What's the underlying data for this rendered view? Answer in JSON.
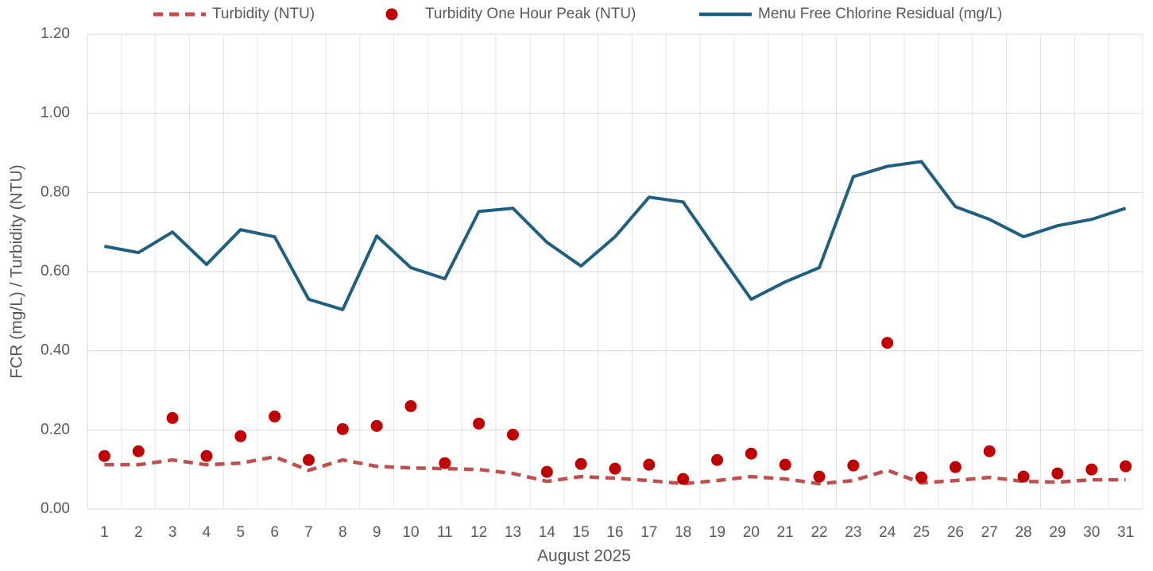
{
  "chart_data": {
    "type": "line",
    "x_label": "August 2025",
    "y_label": "FCR (mg/L) / Turbidity (NTU)",
    "categories": [
      "1",
      "2",
      "3",
      "4",
      "5",
      "6",
      "7",
      "8",
      "9",
      "10",
      "11",
      "12",
      "13",
      "14",
      "15",
      "16",
      "17",
      "18",
      "19",
      "20",
      "21",
      "22",
      "23",
      "24",
      "25",
      "26",
      "27",
      "28",
      "29",
      "30",
      "31"
    ],
    "series": [
      {
        "name": "Turbidity (NTU)",
        "color": "#c0504d",
        "style": "dashed",
        "values": [
          0.112,
          0.112,
          0.124,
          0.112,
          0.116,
          0.132,
          0.098,
          0.124,
          0.108,
          0.104,
          0.102,
          0.1,
          0.09,
          0.07,
          0.082,
          0.078,
          0.072,
          0.064,
          0.072,
          0.082,
          0.076,
          0.064,
          0.072,
          0.098,
          0.066,
          0.072,
          0.08,
          0.07,
          0.068,
          0.074,
          0.074
        ]
      },
      {
        "name": "Turbidity One Hour Peak (NTU)",
        "color": "#c00000",
        "style": "markers",
        "values": [
          0.134,
          0.146,
          0.23,
          0.134,
          0.184,
          0.234,
          0.124,
          0.202,
          0.21,
          0.26,
          0.116,
          0.216,
          0.188,
          0.094,
          0.114,
          0.102,
          0.112,
          0.076,
          0.124,
          0.14,
          0.112,
          0.082,
          0.11,
          0.42,
          0.08,
          0.106,
          0.146,
          0.082,
          0.09,
          0.1,
          0.108
        ]
      },
      {
        "name": "Menu Free Chlorine Residual (mg/L)",
        "color": "#1f5f7f",
        "style": "solid",
        "values": [
          0.664,
          0.648,
          0.7,
          0.618,
          0.706,
          0.688,
          0.53,
          0.504,
          0.69,
          0.61,
          0.582,
          0.752,
          0.76,
          0.674,
          0.614,
          0.688,
          0.788,
          0.776,
          0.652,
          0.53,
          0.574,
          0.61,
          0.84,
          0.866,
          0.878,
          0.764,
          0.732,
          0.688,
          0.716,
          0.732,
          0.76
        ]
      }
    ],
    "ylim": [
      0,
      1.2
    ],
    "yticks": [
      {
        "value": 0,
        "label": "0.00"
      },
      {
        "value": 0.2,
        "label": "0.20"
      },
      {
        "value": 0.4,
        "label": "0.40"
      },
      {
        "value": 0.6,
        "label": "0.60"
      },
      {
        "value": 0.8,
        "label": "0.80"
      },
      {
        "value": 1,
        "label": "1.00"
      },
      {
        "value": 1.2,
        "label": "1.20"
      }
    ],
    "grid": true,
    "legend": "top"
  }
}
